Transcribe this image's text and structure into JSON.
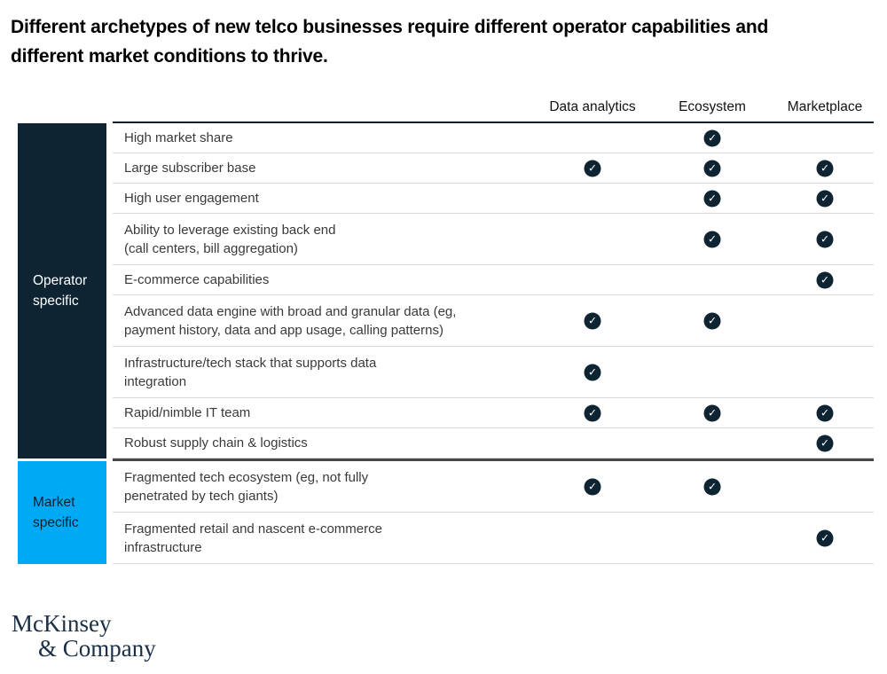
{
  "title": "Different archetypes of new telco businesses require different operator capabilities and different market conditions to thrive.",
  "icons": {
    "check": "✓"
  },
  "colors": {
    "deep_navy": "#0e2433",
    "electric_blue": "#00a9f4",
    "header_rule": "#0b2131",
    "row_divider": "#d9d9d9",
    "section_divider": "#474747"
  },
  "logo": {
    "line1": "McKinsey",
    "line2": "& Company"
  },
  "chart_data": {
    "type": "table",
    "title": "Different archetypes of new telco businesses require different operator capabilities and different market conditions to thrive.",
    "columns": [
      "Data analytics",
      "Ecosystem",
      "Marketplace"
    ],
    "legend_note": "check = capability/condition required by archetype",
    "row_groups": [
      {
        "label": "Operator specific",
        "rows": [
          {
            "lines": [
              "High market share"
            ],
            "checks": [
              false,
              true,
              false
            ]
          },
          {
            "lines": [
              "Large subscriber base"
            ],
            "checks": [
              true,
              true,
              true
            ]
          },
          {
            "lines": [
              "High user engagement"
            ],
            "checks": [
              false,
              true,
              true
            ]
          },
          {
            "lines": [
              "Ability to leverage existing back end",
              "(call centers, bill aggregation)"
            ],
            "checks": [
              false,
              true,
              true
            ]
          },
          {
            "lines": [
              "E-commerce capabilities"
            ],
            "checks": [
              false,
              false,
              true
            ]
          },
          {
            "lines": [
              "Advanced data engine with broad and granular data (eg,",
              "payment history, data and app usage, calling patterns)"
            ],
            "checks": [
              true,
              true,
              false
            ]
          },
          {
            "lines": [
              "Infrastructure/tech stack that supports data",
              "integration"
            ],
            "checks": [
              true,
              false,
              false
            ]
          },
          {
            "lines": [
              "Rapid/nimble IT team"
            ],
            "checks": [
              true,
              true,
              true
            ]
          },
          {
            "lines": [
              "Robust supply chain & logistics"
            ],
            "checks": [
              false,
              false,
              true
            ]
          }
        ]
      },
      {
        "label": "Market specific",
        "rows": [
          {
            "lines": [
              "Fragmented tech ecosystem (eg, not fully",
              "penetrated by tech giants)"
            ],
            "checks": [
              true,
              true,
              false
            ]
          },
          {
            "lines": [
              "Fragmented retail and nascent e-commerce",
              "infrastructure"
            ],
            "checks": [
              false,
              false,
              true
            ]
          }
        ]
      }
    ]
  }
}
